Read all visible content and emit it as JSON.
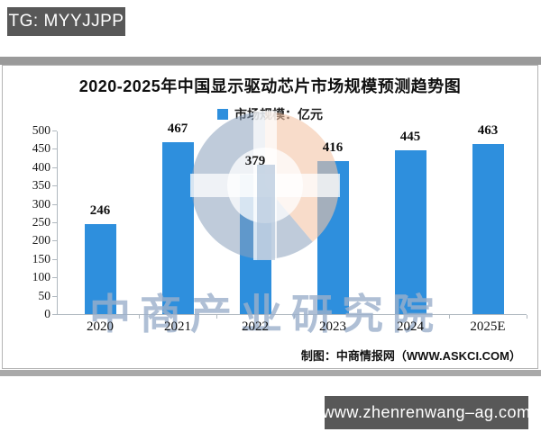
{
  "page": {
    "tg_badge": "TG: MYYJJPP",
    "url_badge": "www.zhenrenwang–ag.com"
  },
  "chart": {
    "title": "2020-2025年中国显示驱动芯片市场规模预测趋势图",
    "legend_label": "市场规模：亿元",
    "source": "制图：中商情报网（WWW.ASKCI.COM）",
    "watermark_text": "中商产业研究院"
  },
  "chart_data": {
    "type": "bar",
    "title": "2020-2025年中国显示驱动芯片市场规模预测趋势图",
    "categories": [
      "2020",
      "2021",
      "2022",
      "2023",
      "2024",
      "2025E"
    ],
    "values": [
      246,
      467,
      379,
      416,
      445,
      463
    ],
    "series_name": "市场规模",
    "unit": "亿元",
    "xlabel": "",
    "ylabel": "",
    "ylim": [
      0,
      500
    ],
    "ytick_step": 50,
    "legend": "市场规模：亿元",
    "legend_position": "top-center",
    "grid": false,
    "value_labels": true,
    "bar_color": "#2e8fdd",
    "source": "制图：中商情报网（WWW.ASKCI.COM）"
  },
  "colors": {
    "bar": "#2e8fdd",
    "badge_bg": "#585858",
    "band_top": "#9a9a9a",
    "band_bottom": "#a9a9a9",
    "axis": "#b0b8bf",
    "watermark_text": "rgba(155,175,202,0.8)",
    "watermark_blue": "rgba(139,160,188,0.55)",
    "watermark_peach": "rgba(244,196,166,0.6)",
    "watermark_white": "rgba(255,255,255,0.75)"
  }
}
